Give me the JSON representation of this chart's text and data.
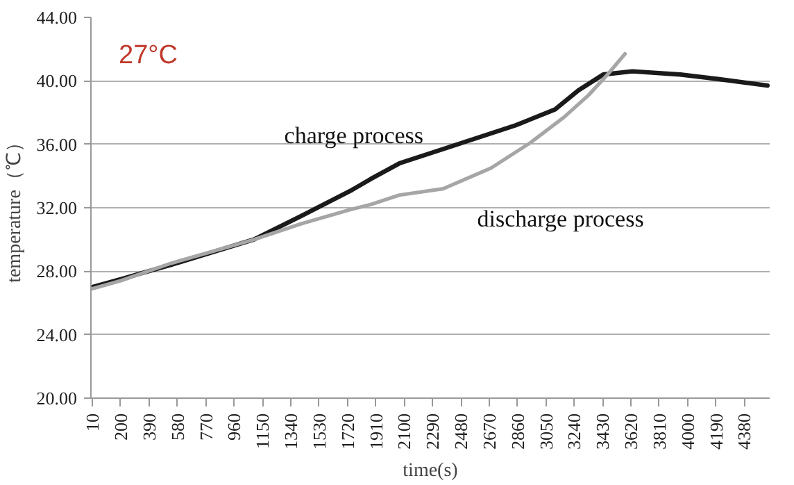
{
  "chart_data": {
    "type": "line",
    "xlabel": "time(s)",
    "ylabel": "temperature（℃）",
    "annotations": [
      "27°C"
    ],
    "xlim": [
      0,
      4550
    ],
    "ylim": [
      20,
      44
    ],
    "xticks": [
      10,
      200,
      390,
      580,
      770,
      960,
      1150,
      1340,
      1530,
      1720,
      1910,
      2100,
      2290,
      2480,
      2670,
      2860,
      3050,
      3240,
      3430,
      3620,
      3810,
      4000,
      4190,
      4380
    ],
    "yticks": [
      {
        "value": 20,
        "label": "20.00"
      },
      {
        "value": 24,
        "label": "24.00"
      },
      {
        "value": 28,
        "label": "28.00"
      },
      {
        "value": 32,
        "label": "32.00"
      },
      {
        "value": 36,
        "label": "36.00"
      },
      {
        "value": 40,
        "label": "40.00"
      },
      {
        "value": 44,
        "label": "44.00"
      }
    ],
    "grid": "y",
    "legend": false,
    "marker": "none",
    "line_style": "solid",
    "series": [
      {
        "name": "charge process",
        "color": "#1a1a1a",
        "x": [
          10,
          200,
          537,
          1093,
          1414,
          1746,
          1873,
          2068,
          2361,
          2848,
          3111,
          3268,
          3434,
          3629,
          3950,
          4213,
          4535
        ],
        "values": [
          27.0,
          27.5,
          28.4,
          30.0,
          31.5,
          33.1,
          33.8,
          34.8,
          35.7,
          37.2,
          38.2,
          39.4,
          40.4,
          40.6,
          40.4,
          40.1,
          39.7
        ]
      },
      {
        "name": "discharge process",
        "color": "#a6a6a6",
        "x": [
          10,
          200,
          537,
          1093,
          1414,
          1746,
          1873,
          2068,
          2361,
          2682,
          2946,
          3170,
          3336,
          3463,
          3580
        ],
        "values": [
          26.9,
          27.4,
          28.5,
          30.0,
          31.0,
          31.9,
          32.2,
          32.8,
          33.2,
          34.5,
          36.1,
          37.7,
          39.1,
          40.4,
          41.7
        ]
      }
    ]
  }
}
